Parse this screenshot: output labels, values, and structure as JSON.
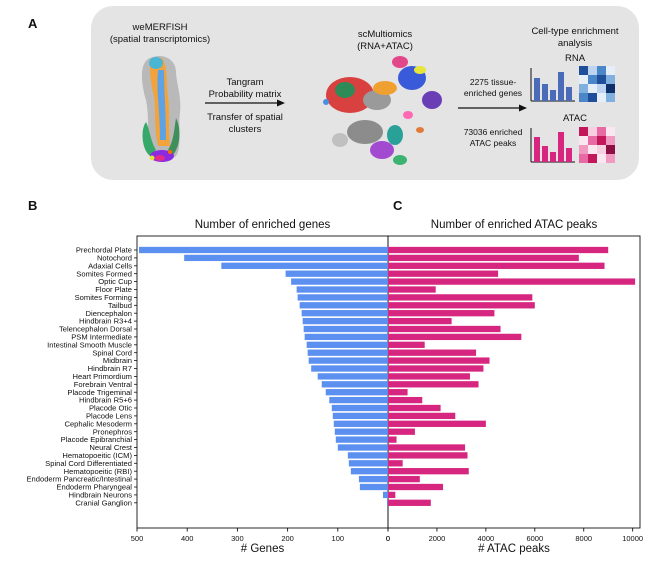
{
  "panel_labels": {
    "a": "A",
    "b": "B",
    "c": "C"
  },
  "workflow": {
    "step1": {
      "title": "weMERFISH",
      "subtitle": "(spatial transcriptomics)"
    },
    "arrow1": {
      "line1": "Tangram",
      "line2": "Probability matrix",
      "line3": "Transfer of spatial",
      "line4": "clusters"
    },
    "step2": {
      "title": "scMultiomics",
      "subtitle": "(RNA+ATAC)"
    },
    "arrow2": {
      "line1": "2275 tissue-",
      "line2": "enriched genes",
      "line3": "73036 enriched",
      "line4": "ATAC peaks"
    },
    "step3": {
      "title": "Cell-type enrichment",
      "subtitle": "analysis",
      "rna_label": "RNA",
      "atac_label": "ATAC"
    },
    "colors": {
      "rna": "#4a6bb8",
      "atac": "#d6267f"
    }
  },
  "chart_data": [
    {
      "type": "bar",
      "orientation": "horizontal",
      "title": "Number of enriched genes",
      "xlabel": "# Genes",
      "xlim": [
        500,
        0
      ],
      "xticks": [
        500,
        400,
        300,
        200,
        100,
        0
      ],
      "color": "#5b8ff0",
      "categories": [
        "Prechordal Plate",
        "Notochord",
        "Adaxial Cells",
        "Somites Formed",
        "Optic Cup",
        "Floor Plate",
        "Somites Forming",
        "Tailbud",
        "Diencephalon",
        "Hindbrain R3+4",
        "Telencephalon Dorsal",
        "PSM Intermediate",
        "Intestinal Smooth Muscle",
        "Spinal Cord",
        "Midbrain",
        "Hindbrain R7",
        "Heart Primordium",
        "Forebrain Ventral",
        "Placode Trigeminal",
        "Hindbrain R5+6",
        "Placode Otic",
        "Placode Lens",
        "Cephalic Mesoderm",
        "Pronephros",
        "Placode Epibranchial",
        "Neural Crest",
        "Hematopoeitic (ICM)",
        "Spinal Cord Differentiated",
        "Hematopoeitic (RBI)",
        "Endoderm Pancreatic/Intestinal",
        "Endoderm Pharyngeal",
        "Hindbrain Neurons",
        "Cranial Ganglion"
      ],
      "values": [
        496,
        406,
        332,
        204,
        193,
        182,
        180,
        176,
        172,
        170,
        168,
        166,
        162,
        160,
        158,
        153,
        140,
        132,
        124,
        117,
        112,
        110,
        108,
        106,
        104,
        100,
        80,
        78,
        74,
        58,
        56,
        10,
        2
      ]
    },
    {
      "type": "bar",
      "orientation": "horizontal",
      "title": "Number of enriched ATAC peaks",
      "xlabel": "# ATAC peaks",
      "xlim": [
        0,
        10300
      ],
      "xticks": [
        0,
        2000,
        4000,
        6000,
        8000,
        10000
      ],
      "color": "#d6267f",
      "categories": [
        "Prechordal Plate",
        "Notochord",
        "Adaxial Cells",
        "Somites Formed",
        "Optic Cup",
        "Floor Plate",
        "Somites Forming",
        "Tailbud",
        "Diencephalon",
        "Hindbrain R3+4",
        "Telencephalon Dorsal",
        "PSM Intermediate",
        "Intestinal Smooth Muscle",
        "Spinal Cord",
        "Midbrain",
        "Hindbrain R7",
        "Heart Primordium",
        "Forebrain Ventral",
        "Placode Trigeminal",
        "Hindbrain R5+6",
        "Placode Otic",
        "Placode Lens",
        "Cephalic Mesoderm",
        "Pronephros",
        "Placode Epibranchial",
        "Neural Crest",
        "Hematopoeitic (ICM)",
        "Spinal Cord Differentiated",
        "Hematopoeitic (RBI)",
        "Endoderm Pancreatic/Intestinal",
        "Endoderm Pharyngeal",
        "Hindbrain Neurons",
        "Cranial Ganglion"
      ],
      "values": [
        9000,
        7800,
        8850,
        4500,
        10100,
        1950,
        5900,
        6000,
        4350,
        2600,
        4600,
        5450,
        1500,
        3600,
        4150,
        3900,
        3350,
        3700,
        800,
        1400,
        2150,
        2750,
        4000,
        1100,
        350,
        3150,
        3250,
        600,
        3300,
        1300,
        2250,
        300,
        1750
      ]
    }
  ]
}
